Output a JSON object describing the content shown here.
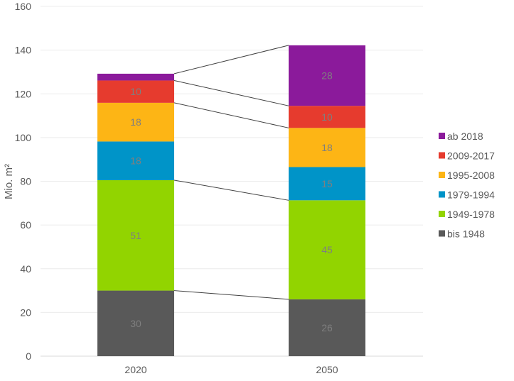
{
  "chart_data": {
    "type": "bar",
    "stacked": true,
    "ylabel": "Mio. m²",
    "ylim": [
      0,
      160
    ],
    "yticks": [
      0,
      20,
      40,
      60,
      80,
      100,
      120,
      140,
      160
    ],
    "grid": true,
    "legend": "right",
    "categories": [
      "2020",
      "2050"
    ],
    "series": [
      {
        "name": "bis 1948",
        "color": "#595959",
        "values": [
          30,
          26
        ],
        "labels": [
          "30",
          "26"
        ]
      },
      {
        "name": "1949-1978",
        "color": "#92d400",
        "values": [
          50.5,
          45.3
        ],
        "labels": [
          "51",
          "45"
        ]
      },
      {
        "name": "1979-1994",
        "color": "#0094c8",
        "values": [
          17.7,
          15.2
        ],
        "labels": [
          "18",
          "15"
        ]
      },
      {
        "name": "1995-2008",
        "color": "#fdb515",
        "values": [
          17.7,
          17.9
        ],
        "labels": [
          "18",
          "18"
        ]
      },
      {
        "name": "2009-2017",
        "color": "#e63b2e",
        "values": [
          10.2,
          10.1
        ],
        "labels": [
          "10",
          "10"
        ]
      },
      {
        "name": "ab 2018",
        "color": "#8b1a9b",
        "values": [
          3.1,
          27.7
        ],
        "labels": [
          "",
          "28"
        ]
      }
    ]
  }
}
